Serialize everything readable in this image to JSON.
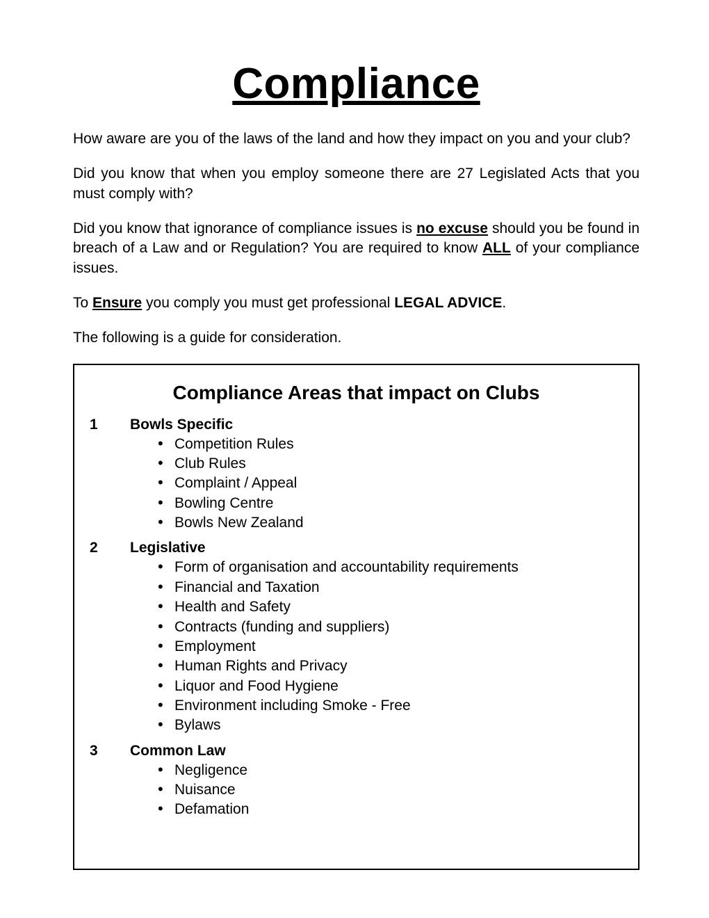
{
  "title": "Compliance",
  "paragraphs": {
    "p1": "How aware are you of the laws of the land and how they impact on you and your club?",
    "p2_a": "Did you know that when you employ someone there are 27 Legislated Acts that you must comply with?",
    "p3_a": "Did you know that ignorance of compliance issues is ",
    "p3_emph": "no excuse",
    "p3_b": " should you be found in breach of a Law and or Regulation? You are required to know ",
    "p3_emph2": "ALL",
    "p3_c": " of your compliance issues.",
    "p4_a": "To ",
    "p4_emph": "Ensure",
    "p4_b": " you comply you must get professional ",
    "p4_strong": "LEGAL ADVICE",
    "p4_c": ".",
    "p5": "The following is a guide for consideration."
  },
  "box": {
    "title": "Compliance Areas that impact on Clubs",
    "sections": [
      {
        "num": "1",
        "heading": "Bowls Specific",
        "items": [
          "Competition Rules",
          "Club Rules",
          "Complaint / Appeal",
          "Bowling Centre",
          "Bowls New Zealand"
        ]
      },
      {
        "num": "2",
        "heading": "Legislative",
        "items": [
          "Form of organisation and accountability requirements",
          "Financial and Taxation",
          "Health and Safety",
          "Contracts (funding and suppliers)",
          "Employment",
          "Human Rights and Privacy",
          "Liquor and Food Hygiene",
          "Environment including Smoke - Free",
          "Bylaws"
        ]
      },
      {
        "num": "3",
        "heading": "Common Law",
        "items": [
          "Negligence",
          "Nuisance",
          "Defamation"
        ]
      }
    ]
  }
}
